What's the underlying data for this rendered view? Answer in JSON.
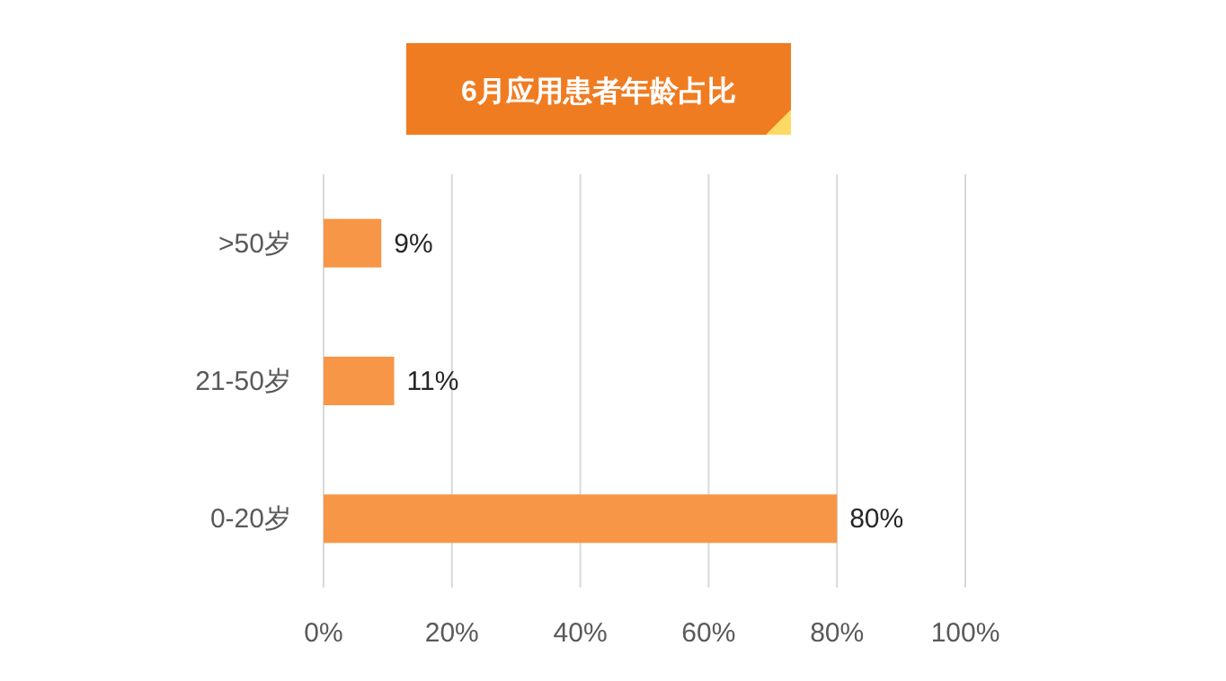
{
  "chart_data": {
    "type": "bar",
    "orientation": "horizontal",
    "title": "6月应用患者年龄占比",
    "categories": [
      ">50岁",
      "21-50岁",
      "0-20岁"
    ],
    "values": [
      9,
      11,
      80
    ],
    "color": "#f79646",
    "value_labels": [
      "9%",
      "11%",
      "80%"
    ],
    "xlim": [
      0,
      100
    ],
    "xticks": [
      {
        "value": 0,
        "label": "0%"
      },
      {
        "value": 20,
        "label": "20%"
      },
      {
        "value": 40,
        "label": "40%"
      },
      {
        "value": 60,
        "label": "60%"
      },
      {
        "value": 80,
        "label": "80%"
      },
      {
        "value": 100,
        "label": "100%"
      }
    ],
    "grid": "x"
  }
}
